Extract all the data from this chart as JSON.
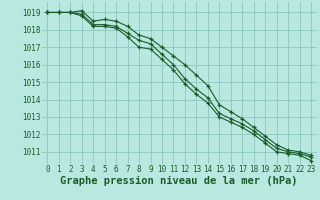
{
  "title": "Graphe pression niveau de la mer (hPa)",
  "hours": [
    0,
    1,
    2,
    3,
    4,
    5,
    6,
    7,
    8,
    9,
    10,
    11,
    12,
    13,
    14,
    15,
    16,
    17,
    18,
    19,
    20,
    21,
    22,
    23
  ],
  "line1": [
    1019.0,
    1019.0,
    1019.0,
    1018.8,
    1018.2,
    1018.2,
    1018.1,
    1017.6,
    1017.0,
    1016.9,
    1016.3,
    1015.7,
    1014.9,
    1014.3,
    1013.8,
    1013.0,
    1012.7,
    1012.4,
    1012.0,
    1011.5,
    1011.0,
    1010.9,
    1010.8,
    1010.5
  ],
  "line2": [
    1019.0,
    1019.0,
    1019.0,
    1019.1,
    1018.5,
    1018.6,
    1018.5,
    1018.2,
    1017.7,
    1017.5,
    1017.0,
    1016.5,
    1016.0,
    1015.4,
    1014.8,
    1013.7,
    1013.3,
    1012.9,
    1012.4,
    1011.9,
    1011.4,
    1011.1,
    1011.0,
    1010.8
  ],
  "line3": [
    1019.0,
    1019.0,
    1019.0,
    1018.9,
    1018.3,
    1018.3,
    1018.2,
    1017.8,
    1017.4,
    1017.2,
    1016.6,
    1016.0,
    1015.2,
    1014.6,
    1014.1,
    1013.2,
    1012.9,
    1012.6,
    1012.2,
    1011.7,
    1011.2,
    1011.0,
    1010.9,
    1010.7
  ],
  "bg_color": "#b8e8e0",
  "grid_color": "#90ccc4",
  "line_color": "#1a5c28",
  "ylim": [
    1010.3,
    1019.6
  ],
  "yticks": [
    1011,
    1012,
    1013,
    1014,
    1015,
    1016,
    1017,
    1018,
    1019
  ],
  "xticks": [
    0,
    1,
    2,
    3,
    4,
    5,
    6,
    7,
    8,
    9,
    10,
    11,
    12,
    13,
    14,
    15,
    16,
    17,
    18,
    19,
    20,
    21,
    22,
    23
  ],
  "tick_fontsize": 5.5,
  "title_fontsize": 7.5,
  "lw": 0.8,
  "markersize": 2.8,
  "mew": 0.9
}
